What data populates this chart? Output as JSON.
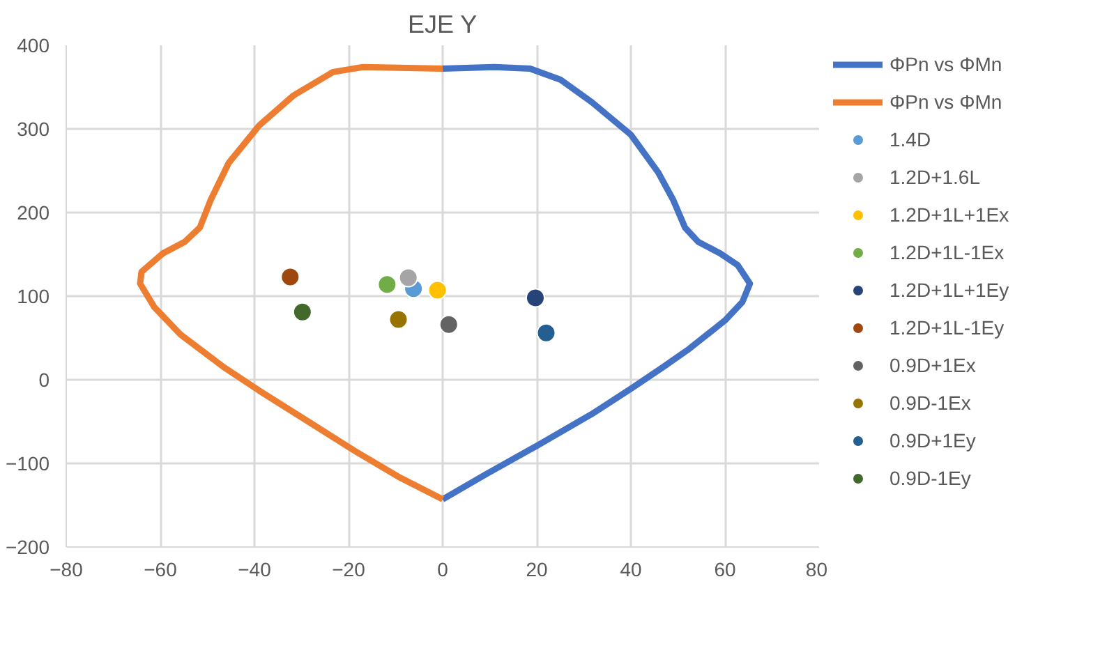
{
  "chart_data": {
    "type": "scatter",
    "title": "EJE Y",
    "xlim": [
      -80,
      80
    ],
    "ylim": [
      -200,
      400
    ],
    "xticks": [
      -80,
      -60,
      -40,
      -20,
      0,
      20,
      40,
      60,
      80
    ],
    "yticks": [
      -200,
      -100,
      0,
      100,
      200,
      300,
      400
    ],
    "grid": true,
    "legend": "right",
    "series": [
      {
        "name": "ΦPn vs ΦMn",
        "type": "line",
        "color": "#4472c4",
        "x": [
          0,
          11,
          18.6,
          25,
          31.7,
          40,
          45.8,
          49,
          51.5,
          54.3,
          59,
          62.7,
          65.3,
          63.7,
          60,
          52.4,
          46.8,
          40.2,
          31.7,
          20,
          9.2,
          0
        ],
        "values": [
          372,
          374,
          372,
          359,
          332,
          293,
          248,
          215,
          182,
          165,
          151,
          137,
          115,
          93,
          71,
          37,
          15,
          -10,
          -41,
          -79,
          -113,
          -143
        ]
      },
      {
        "name": "ΦPn vs ΦMn",
        "type": "line",
        "color": "#ed7d31",
        "x": [
          0,
          -16.9,
          -23.3,
          -31.7,
          -39,
          -45.5,
          -49.3,
          -51.6,
          -54.8,
          -59.5,
          -64,
          -64.3,
          -61.3,
          -55.7,
          -46.5,
          -39,
          -28,
          -18.7,
          -9.4,
          0
        ],
        "values": [
          372,
          374,
          368,
          340,
          304,
          259,
          215,
          182,
          165,
          151,
          129,
          115,
          87,
          54,
          15,
          -13,
          -52,
          -85,
          -116,
          -143
        ]
      },
      {
        "name": "1.4D",
        "color": "#5b9bd5",
        "marker": "circle",
        "x": [
          -6.2
        ],
        "values": [
          109
        ]
      },
      {
        "name": "1.2D+1.6L",
        "color": "#a5a5a5",
        "marker": "circle",
        "x": [
          -7.3
        ],
        "values": [
          122
        ]
      },
      {
        "name": "1.2D+1L+1Ex",
        "color": "#ffc000",
        "marker": "circle",
        "x": [
          -1.1
        ],
        "values": [
          107
        ]
      },
      {
        "name": "1.2D+1L-1Ex",
        "color": "#70ad47",
        "marker": "circle",
        "x": [
          -11.8
        ],
        "values": [
          114
        ]
      },
      {
        "name": "1.2D+1L+1Ey",
        "color": "#264478",
        "marker": "circle",
        "x": [
          19.7
        ],
        "values": [
          98
        ]
      },
      {
        "name": "1.2D+1L-1Ey",
        "color": "#9e480e",
        "marker": "circle",
        "x": [
          -32.4
        ],
        "values": [
          123
        ]
      },
      {
        "name": "0.9D+1Ex",
        "color": "#636363",
        "marker": "circle",
        "x": [
          1.3
        ],
        "values": [
          66
        ]
      },
      {
        "name": "0.9D-1Ex",
        "color": "#997300",
        "marker": "circle",
        "x": [
          -9.4
        ],
        "values": [
          72
        ]
      },
      {
        "name": "0.9D+1Ey",
        "color": "#255e91",
        "marker": "circle",
        "x": [
          22
        ],
        "values": [
          56
        ]
      },
      {
        "name": "0.9D-1Ey",
        "color": "#43682b",
        "marker": "circle",
        "x": [
          -29.8
        ],
        "values": [
          81
        ]
      }
    ]
  }
}
